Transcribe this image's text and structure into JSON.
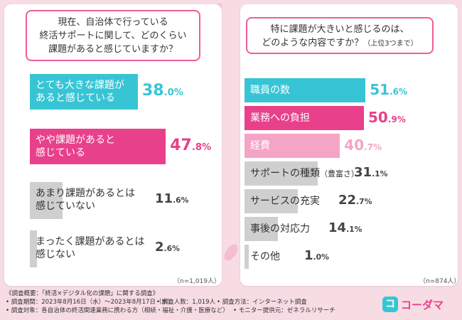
{
  "left_panel": {
    "question_lines": [
      "現在、自治体で行っている",
      "終活サポートに関して、どのくらい",
      "課題があると感じていますか？"
    ],
    "n_note": "（n=1,019人）"
  },
  "right_panel": {
    "question_lines": [
      "特に課題が大きいと感じるのは、",
      "どのような内容ですか？"
    ],
    "question_sub": "（上位3つまで）",
    "n_note": "（n=874人）"
  },
  "footer": {
    "title": "《調査概要：「終活×デジタル化の課題」に関する調査》",
    "period": "• 調査期間：2023年8月16日（水）～2023年8月17日（木）",
    "people": "• 調査人数：1,019人",
    "method": "• 調査方法：インターネット調査",
    "target": "• 調査対象：各自治体の終活関連業務に携わる方（相続・福祉・介護・医療など）",
    "monitor": "• モニター提供元：ゼネラルリサーチ"
  },
  "logo": {
    "icon": "コ",
    "text": "コーダマ"
  },
  "colors": {
    "teal": "#37c5d5",
    "pink": "#e9408b",
    "light_pink": "#f5a3c6",
    "gray": "#cfcfcf",
    "border": "#ee5d9a"
  },
  "chart_data": [
    {
      "type": "bar",
      "title": "現在、自治体で行っている終活サポートに関して、どのくらい課題があると感じていますか？",
      "categories": [
        "とても大きな課題があると感じている",
        "やや課題があると感じている",
        "あまり課題があるとは感じていない",
        "まったく課題があるとは感じない"
      ],
      "label_lines": [
        [
          "とても大きな課題が",
          "あると感じている"
        ],
        [
          "やや課題があると",
          "感じている"
        ],
        [
          "あまり課題があるとは",
          "感じていない"
        ],
        [
          "まったく課題があるとは",
          "感じない"
        ]
      ],
      "values": [
        38.0,
        47.8,
        11.6,
        2.6
      ],
      "pct_int": [
        "38",
        "47",
        "11",
        "2"
      ],
      "pct_dec": [
        ".0%",
        ".8%",
        ".6%",
        ".6%"
      ],
      "unit": "%",
      "n": "n=1,019人"
    },
    {
      "type": "bar",
      "title": "特に課題が大きいと感じるのは、どのような内容ですか？（上位3つまで）",
      "categories": [
        "職員の数",
        "業務への負担",
        "経費",
        "サポートの種類（豊富さ）",
        "サービスの充実",
        "事後の対応力",
        "その他"
      ],
      "label_main": [
        "職員の数",
        "業務への負担",
        "経費",
        "サポートの種類",
        "サービスの充実",
        "事後の対応力",
        "その他"
      ],
      "label_sub": [
        "",
        "",
        "",
        "（豊富さ）",
        "",
        "",
        ""
      ],
      "values": [
        51.6,
        50.9,
        40.7,
        31.1,
        22.7,
        14.1,
        1.0
      ],
      "pct_int": [
        "51",
        "50",
        "40",
        "31",
        "22",
        "14",
        "1"
      ],
      "pct_dec": [
        ".6%",
        ".9%",
        ".7%",
        ".1%",
        ".7%",
        ".1%",
        ".0%"
      ],
      "unit": "%",
      "n": "n=874人"
    }
  ]
}
